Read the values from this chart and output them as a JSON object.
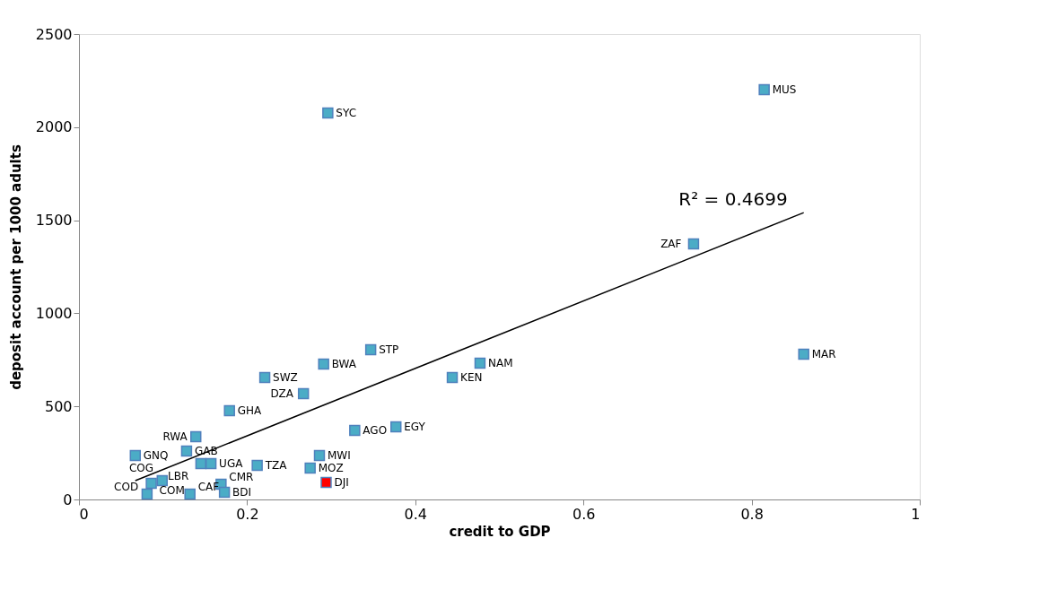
{
  "chart_data": {
    "type": "scatter",
    "xlabel": "credit to GDP",
    "ylabel": "deposit account per 1000 adults",
    "xlim": [
      0,
      1
    ],
    "xticks": [
      0,
      0.2,
      0.4,
      0.6,
      0.8,
      1
    ],
    "ylim": [
      0,
      2500
    ],
    "yticks": [
      0,
      500,
      1000,
      1500,
      2000,
      2500
    ],
    "grid": false,
    "marker": "square",
    "series": [
      {
        "x": [
          0.815,
          0.296,
          0.731,
          0.347,
          0.291,
          0.477,
          0.221,
          0.444,
          0.862,
          0.267,
          0.179,
          0.328,
          0.377,
          0.139,
          0.067,
          0.128,
          0.145,
          0.157,
          0.286,
          0.212,
          0.275,
          0.294,
          0.099,
          0.086,
          0.081,
          0.169,
          0.132,
          0.173
        ],
        "values": [
          2201,
          2076,
          1373,
          804,
          727,
          732,
          655,
          655,
          780,
          568,
          477,
          371,
          390,
          337,
          236,
          260,
          193,
          193,
          236,
          183,
          169,
          92,
          101,
          87,
          29,
          82,
          29,
          39
        ],
        "colors": [
          "#4bacc6",
          "#4bacc6",
          "#4bacc6",
          "#4bacc6",
          "#4bacc6",
          "#4bacc6",
          "#4bacc6",
          "#4bacc6",
          "#4bacc6",
          "#4bacc6",
          "#4bacc6",
          "#4bacc6",
          "#4bacc6",
          "#4bacc6",
          "#4bacc6",
          "#4bacc6",
          "#4bacc6",
          "#4bacc6",
          "#4bacc6",
          "#4bacc6",
          "#4bacc6",
          "#ff0000",
          "#4bacc6",
          "#4bacc6",
          "#4bacc6",
          "#4bacc6",
          "#4bacc6",
          "#4bacc6"
        ],
        "value_labels": [
          "MUS",
          "SYC",
          "ZAF",
          "STP",
          "BWA",
          "NAM",
          "SWZ",
          "KEN",
          "MAR",
          "DZA",
          "GHA",
          "AGO",
          "EGY",
          "RWA",
          "GNQ",
          "GAB",
          "LBR",
          "UGA",
          "MWI",
          "TZA",
          "MOZ",
          "DJI",
          "COG",
          "COM",
          "COD",
          "CMR",
          "CAF",
          "BDI"
        ]
      },
      {
        "type": "line",
        "color": "#000000",
        "line_style": "solid",
        "marker": "none",
        "x": [
          0.067,
          0.862
        ],
        "values": [
          101,
          1541
        ]
      }
    ],
    "annotations": [
      "R² = 0.4699"
    ]
  }
}
